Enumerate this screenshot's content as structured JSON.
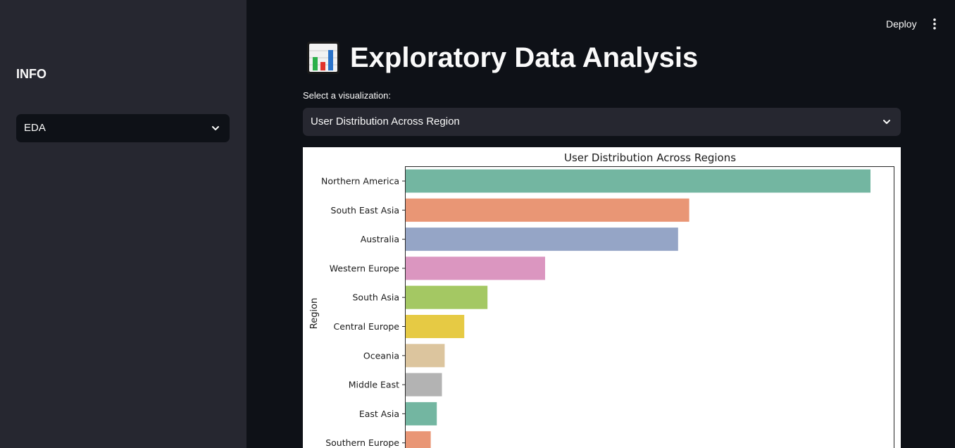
{
  "sidebar": {
    "title": "INFO",
    "select_value": "EDA"
  },
  "header": {
    "deploy_label": "Deploy",
    "menu_icon": "vertical-dots-icon"
  },
  "main": {
    "title_icon": "bar-chart-icon",
    "title": "Exploratory Data Analysis",
    "select_label": "Select a visualization:",
    "select_value": "User Distribution Across Region"
  },
  "chart_data": {
    "type": "bar",
    "orientation": "horizontal",
    "title": "User Distribution Across Regions",
    "ylabel": "Region",
    "xlabel": "",
    "categories": [
      "Northern America",
      "South East Asia",
      "Australia",
      "Western Europe",
      "South Asia",
      "Central Europe",
      "Oceania",
      "Middle East",
      "East Asia",
      "Southern Europe"
    ],
    "values": [
      100,
      61,
      58.6,
      30,
      17.6,
      12.6,
      8.4,
      7.8,
      6.7,
      5.4
    ],
    "colors": [
      "#73b6a1",
      "#e99675",
      "#95a5c6",
      "#db96c0",
      "#a4c863",
      "#e6ca44",
      "#dcc59e",
      "#b3b3b3",
      "#73b6a1",
      "#e99675"
    ],
    "xlim": [
      0,
      105
    ],
    "grid": false,
    "legend": "none"
  }
}
